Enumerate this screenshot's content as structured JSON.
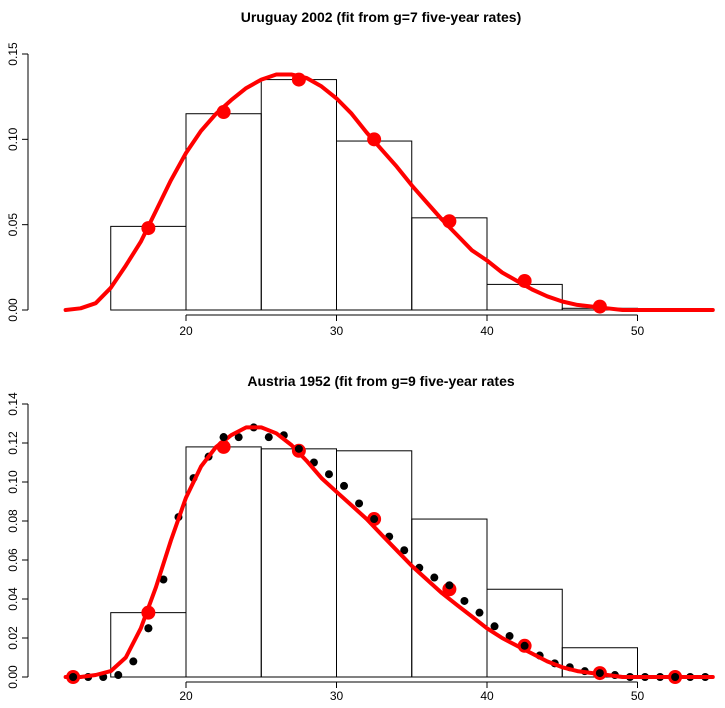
{
  "chart_data": [
    {
      "type": "histogram-with-fitted-curve",
      "title": "Uruguay 2002 (fit from g=7 five-year rates)",
      "xlabel": "",
      "ylabel": "",
      "xlim": [
        12,
        55
      ],
      "ylim": [
        0,
        0.15
      ],
      "x_ticks": [
        20,
        30,
        40,
        50
      ],
      "y_ticks": [
        0.0,
        0.05,
        0.1,
        0.15
      ],
      "y_tick_labels": [
        "0.00",
        "0.05",
        "0.10",
        "0.15"
      ],
      "histogram": {
        "bin_edges": [
          15,
          20,
          25,
          30,
          35,
          40,
          45,
          50
        ],
        "heights": [
          0.049,
          0.115,
          0.135,
          0.099,
          0.054,
          0.015,
          0.001
        ]
      },
      "points": {
        "color": "#ff0000",
        "x": [
          17.5,
          22.5,
          27.5,
          32.5,
          37.5,
          42.5,
          47.5
        ],
        "y": [
          0.048,
          0.116,
          0.135,
          0.1,
          0.052,
          0.017,
          0.002
        ]
      },
      "fit_curve": {
        "color": "#ff0000",
        "x": [
          12,
          13,
          14,
          15,
          16,
          17,
          18,
          19,
          20,
          21,
          22,
          23,
          24,
          25,
          26,
          27,
          28,
          29,
          30,
          31,
          32,
          33,
          34,
          35,
          36,
          37,
          38,
          39,
          40,
          41,
          42,
          43,
          44,
          45,
          46,
          47,
          48,
          49,
          50,
          52,
          55
        ],
        "y": [
          0.0,
          0.001,
          0.004,
          0.013,
          0.026,
          0.04,
          0.058,
          0.076,
          0.092,
          0.105,
          0.115,
          0.123,
          0.13,
          0.135,
          0.138,
          0.138,
          0.136,
          0.131,
          0.124,
          0.115,
          0.104,
          0.094,
          0.084,
          0.073,
          0.063,
          0.053,
          0.044,
          0.035,
          0.029,
          0.022,
          0.017,
          0.012,
          0.008,
          0.005,
          0.003,
          0.002,
          0.001,
          0.0,
          0.0,
          0.0,
          0.0
        ]
      }
    },
    {
      "type": "histogram-with-fitted-curve",
      "title": "Austria 1952 (fit from g=9 five-year rates",
      "xlabel": "",
      "ylabel": "",
      "xlim": [
        12,
        55
      ],
      "ylim": [
        0,
        0.14
      ],
      "x_ticks": [
        20,
        30,
        40,
        50
      ],
      "y_ticks": [
        0.0,
        0.02,
        0.04,
        0.06,
        0.08,
        0.1,
        0.12,
        0.14
      ],
      "y_tick_labels": [
        "0.00",
        "0.02",
        "0.04",
        "0.06",
        "0.08",
        "0.10",
        "0.12",
        "0.14"
      ],
      "histogram": {
        "bin_edges": [
          15,
          20,
          25,
          30,
          35,
          40,
          45,
          50
        ],
        "heights": [
          0.033,
          0.118,
          0.117,
          0.116,
          0.081,
          0.045,
          0.015
        ]
      },
      "single_year_points": {
        "color": "#000000",
        "x": [
          12.5,
          13.5,
          14.5,
          15.5,
          16.5,
          17.5,
          18.5,
          19.5,
          20.5,
          21.5,
          22.5,
          23.5,
          24.5,
          25.5,
          26.5,
          27.5,
          28.5,
          29.5,
          30.5,
          31.5,
          32.5,
          33.5,
          34.5,
          35.5,
          36.5,
          37.5,
          38.5,
          39.5,
          40.5,
          41.5,
          42.5,
          43.5,
          44.5,
          45.5,
          46.5,
          47.5,
          48.5,
          49.5,
          50.5,
          51.5,
          52.5,
          53.5,
          54.5
        ],
        "y": [
          0.0,
          0.0,
          0.0,
          0.001,
          0.008,
          0.025,
          0.05,
          0.082,
          0.102,
          0.113,
          0.123,
          0.123,
          0.128,
          0.123,
          0.124,
          0.117,
          0.11,
          0.104,
          0.098,
          0.089,
          0.081,
          0.072,
          0.065,
          0.056,
          0.051,
          0.047,
          0.039,
          0.033,
          0.026,
          0.021,
          0.016,
          0.011,
          0.007,
          0.005,
          0.003,
          0.002,
          0.001,
          0.0,
          0.0,
          0.0,
          0.0,
          0.0,
          0.0
        ]
      },
      "points": {
        "color": "#ff0000",
        "x": [
          12.5,
          17.5,
          22.5,
          27.5,
          32.5,
          37.5,
          42.5,
          47.5,
          52.5
        ],
        "y": [
          0.0,
          0.033,
          0.118,
          0.116,
          0.081,
          0.045,
          0.016,
          0.002,
          0.0
        ]
      },
      "fit_curve": {
        "color": "#ff0000",
        "x": [
          12,
          13,
          14,
          15,
          16,
          17,
          18,
          19,
          20,
          21,
          22,
          23,
          24,
          25,
          26,
          27,
          28,
          29,
          30,
          31,
          32,
          33,
          34,
          35,
          36,
          37,
          38,
          39,
          40,
          41,
          42,
          43,
          44,
          45,
          46,
          47,
          48,
          49,
          50,
          52,
          55
        ],
        "y": [
          0.0,
          0.0,
          0.001,
          0.003,
          0.01,
          0.025,
          0.046,
          0.07,
          0.092,
          0.108,
          0.118,
          0.124,
          0.128,
          0.128,
          0.125,
          0.119,
          0.111,
          0.102,
          0.095,
          0.088,
          0.081,
          0.073,
          0.065,
          0.057,
          0.05,
          0.043,
          0.037,
          0.031,
          0.025,
          0.02,
          0.016,
          0.012,
          0.008,
          0.005,
          0.003,
          0.002,
          0.001,
          0.0,
          0.0,
          0.0,
          0.0
        ]
      }
    }
  ]
}
